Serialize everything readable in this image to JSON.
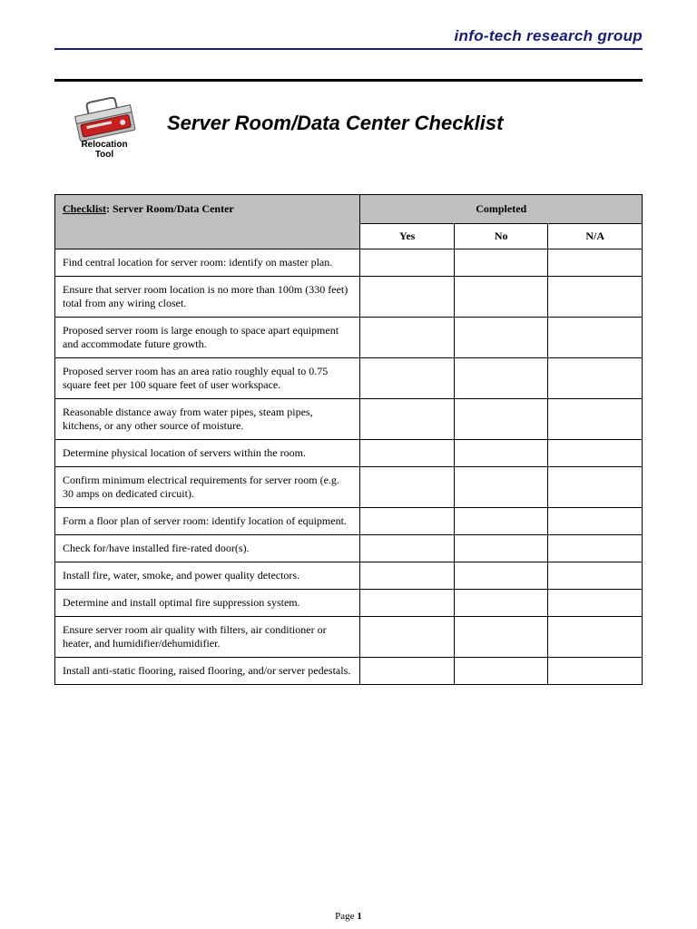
{
  "brand": "info-tech research group",
  "logo_caption_line1": "Relocation",
  "logo_caption_line2": "Tool",
  "title": "Server Room/Data Center Checklist",
  "table": {
    "header_left_prefix": "Checklist",
    "header_left_subject": ": Server Room/Data Center",
    "header_completed": "Completed",
    "cols": {
      "yes": "Yes",
      "no": "No",
      "na": "N/A"
    },
    "col_widths": {
      "item_pct": 52,
      "yes_pct": 16,
      "no_pct": 16,
      "na_pct": 16
    },
    "rows": [
      "Find central location for server room: identify on master plan.",
      "Ensure that server room location is no more than 100m (330 feet) total from any wiring closet.",
      "Proposed server room is large enough to space apart equipment and accommodate future growth.",
      "Proposed server room has an area ratio roughly equal to 0.75 square feet per 100 square feet of user workspace.",
      "Reasonable distance away from water pipes, steam pipes, kitchens, or any other source of moisture.",
      "Determine physical location of servers within the room.",
      "Confirm minimum electrical requirements for server room (e.g. 30 amps on dedicated circuit).",
      "Form a floor plan of server room: identify location of equipment.",
      "Check for/have installed fire-rated door(s).",
      "Install fire, water, smoke, and power quality detectors.",
      "Determine and install optimal fire suppression system.",
      "Ensure server room air quality with filters, air conditioner or heater, and humidifier/dehumidifier.",
      "Install anti-static flooring, raised flooring, and/or server pedestals."
    ]
  },
  "footer": {
    "label": "Page ",
    "number": "1"
  },
  "colors": {
    "brand_text": "#1a1a7a",
    "brand_rule": "#1a1a7a",
    "heavy_rule": "#000000",
    "table_border": "#000000",
    "header_bg": "#bfbfbf",
    "page_bg": "#ffffff",
    "toolbox_body": "#bcbcbc",
    "toolbox_tray": "#c62020"
  }
}
